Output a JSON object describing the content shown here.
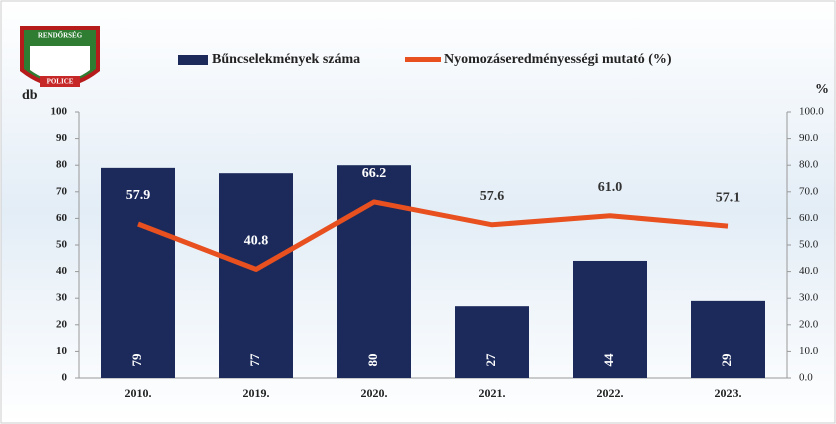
{
  "logo": {
    "top": "RENDŐRSÉG",
    "bottom": "POLICE"
  },
  "chart_data": {
    "type": "bar",
    "ylabel": "db",
    "y2label": "%",
    "categories": [
      "2010.",
      "2019.",
      "2020.",
      "2021.",
      "2022.",
      "2023."
    ],
    "series": [
      {
        "name": "Bűncselekmények száma",
        "type": "bar",
        "color": "#1b2a5b",
        "values": [
          79,
          77,
          80,
          27,
          44,
          29
        ]
      },
      {
        "name": "Nyomozáseredményességi mutató (%)",
        "type": "line",
        "axis": "y2",
        "color": "#e8501f",
        "values": [
          57.9,
          40.8,
          66.2,
          57.6,
          61.0,
          57.1
        ],
        "value_labels": [
          "57.9",
          "40.8",
          "66.2",
          "57.6",
          "61.0",
          "57.1"
        ]
      }
    ],
    "ylim": [
      0,
      100
    ],
    "yticks": [
      0,
      10,
      20,
      30,
      40,
      50,
      60,
      70,
      80,
      90,
      100
    ],
    "y2lim": [
      0,
      100
    ],
    "y2ticks": [
      {
        "value": 0,
        "label": "0.0"
      },
      {
        "value": 10,
        "label": "10.0"
      },
      {
        "value": 20,
        "label": "20.0"
      },
      {
        "value": 30,
        "label": "30.0"
      },
      {
        "value": 40,
        "label": "40.0"
      },
      {
        "value": 50,
        "label": "50.0"
      },
      {
        "value": 60,
        "label": "60.0"
      },
      {
        "value": 70,
        "label": "70.0"
      },
      {
        "value": 80,
        "label": "80.0"
      },
      {
        "value": 90,
        "label": "90.0"
      },
      {
        "value": 100,
        "label": "100.0"
      }
    ]
  }
}
